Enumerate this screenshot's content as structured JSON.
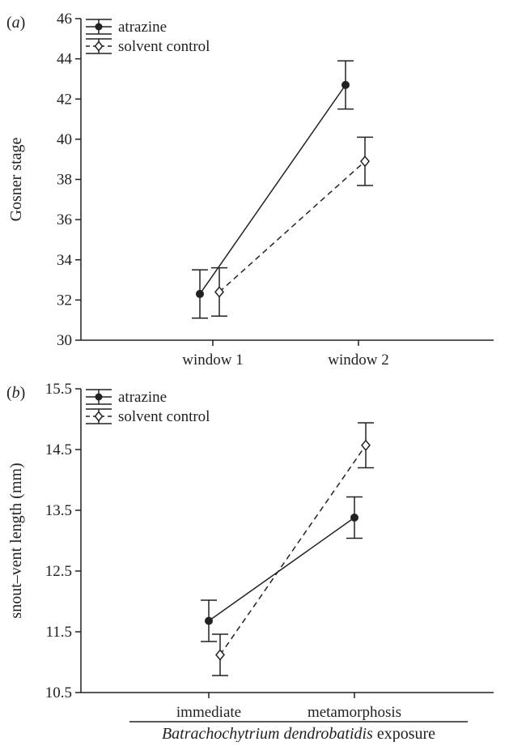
{
  "figure": {
    "xtitle_italic": "Batrachochytrium dendrobatidis",
    "xtitle_rest": " exposure"
  },
  "chart_data": [
    {
      "panel": "(a)",
      "panel_letter": "a",
      "type": "line",
      "ylabel": "Gosner stage",
      "xlabel": "",
      "categories": [
        "window 1",
        "window 2"
      ],
      "ylim": [
        30,
        46
      ],
      "yticks": [
        30,
        32,
        34,
        36,
        38,
        40,
        42,
        44,
        46
      ],
      "grid": false,
      "legend_position": "top-left",
      "series": [
        {
          "name": "atrazine",
          "style": "solid",
          "marker": "filled-circle",
          "values": [
            32.3,
            42.7
          ],
          "error": [
            1.2,
            1.2
          ]
        },
        {
          "name": "solvent control",
          "style": "dashed",
          "marker": "open-diamond",
          "values": [
            32.4,
            38.9
          ],
          "error": [
            1.2,
            1.2
          ]
        }
      ]
    },
    {
      "panel": "(b)",
      "panel_letter": "b",
      "type": "line",
      "ylabel": "snout–vent length (mm)",
      "xlabel": "",
      "categories": [
        "immediate",
        "metamorphosis"
      ],
      "ylim": [
        10.5,
        15.5
      ],
      "yticks": [
        "10.5",
        "11.5",
        "12.5",
        "13.5",
        "14.5",
        "15.5"
      ],
      "grid": false,
      "legend_position": "top-left",
      "series": [
        {
          "name": "atrazine",
          "style": "solid",
          "marker": "filled-circle",
          "values": [
            11.68,
            13.38
          ],
          "error": [
            0.34,
            0.34
          ]
        },
        {
          "name": "solvent control",
          "style": "dashed",
          "marker": "open-diamond",
          "values": [
            11.12,
            14.57
          ],
          "error": [
            0.34,
            0.37
          ]
        }
      ]
    }
  ]
}
